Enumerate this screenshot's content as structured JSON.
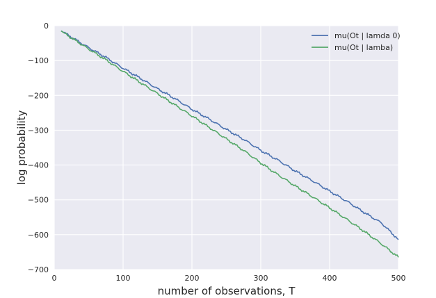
{
  "chart_data": {
    "type": "line",
    "xlabel": "number of observations, T",
    "ylabel": "log probability",
    "xlim": [
      0,
      500
    ],
    "ylim": [
      -700,
      0
    ],
    "xticks": [
      0,
      100,
      200,
      300,
      400,
      500
    ],
    "yticks": [
      0,
      -100,
      -200,
      -300,
      -400,
      -500,
      -600,
      -700
    ],
    "xtick_labels": [
      "0",
      "100",
      "200",
      "300",
      "400",
      "500"
    ],
    "ytick_labels": [
      "0",
      "−100",
      "−200",
      "−300",
      "−400",
      "−500",
      "−600",
      "−700"
    ],
    "grid": true,
    "legend_position": "top-right",
    "background": "#eaeaf2",
    "series": [
      {
        "name": "mu(Ot | lamda 0)",
        "color": "#4c72b0",
        "x": [
          10,
          25,
          50,
          75,
          100,
          125,
          150,
          175,
          200,
          225,
          250,
          275,
          300,
          325,
          350,
          375,
          400,
          425,
          450,
          475,
          500
        ],
        "y": [
          -15,
          -33,
          -63,
          -91,
          -122,
          -151,
          -181,
          -209,
          -240,
          -268,
          -298,
          -326,
          -358,
          -386,
          -417,
          -445,
          -475,
          -504,
          -536,
          -566,
          -614
        ]
      },
      {
        "name": "mu(Ot | lamba)",
        "color": "#55a868",
        "x": [
          10,
          25,
          50,
          75,
          100,
          125,
          150,
          175,
          200,
          225,
          250,
          275,
          300,
          325,
          350,
          375,
          400,
          425,
          450,
          475,
          500
        ],
        "y": [
          -15,
          -35,
          -67,
          -98,
          -131,
          -163,
          -195,
          -227,
          -259,
          -292,
          -325,
          -358,
          -394,
          -428,
          -460,
          -491,
          -523,
          -556,
          -590,
          -626,
          -665
        ]
      }
    ]
  }
}
